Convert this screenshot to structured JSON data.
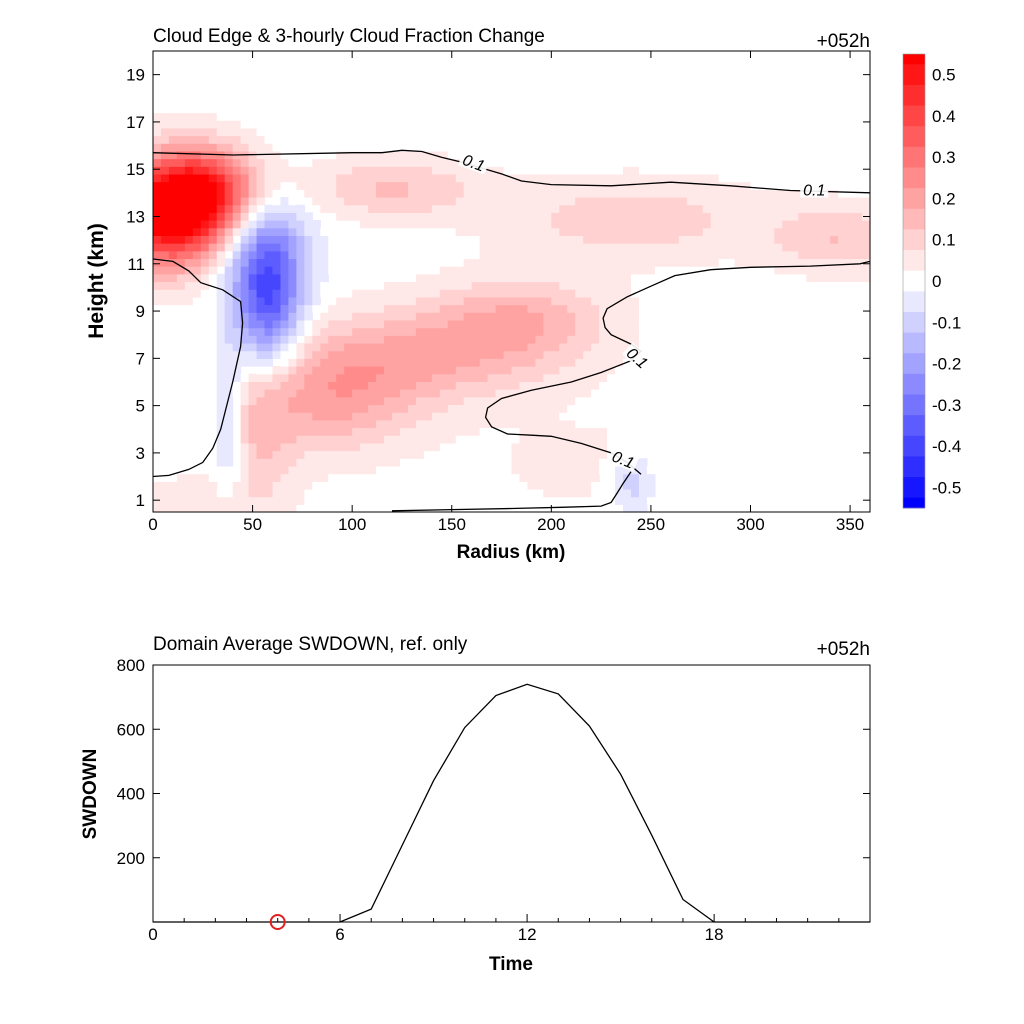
{
  "chart_data": [
    {
      "type": "heatmap",
      "title": "Cloud Edge & 3-hourly Cloud Fraction Change",
      "time_tag": "+052h",
      "xlabel": "Radius (km)",
      "ylabel": "Height (km)",
      "xlim": [
        0,
        360
      ],
      "ylim": [
        0.5,
        20
      ],
      "x_ticks": [
        0,
        50,
        100,
        150,
        200,
        250,
        300,
        350
      ],
      "y_ticks": [
        1,
        3,
        5,
        7,
        9,
        11,
        13,
        15,
        17,
        19
      ],
      "colorbar": {
        "ticks": [
          0.5,
          0.4,
          0.3,
          0.2,
          0.1,
          0,
          -0.1,
          -0.2,
          -0.3,
          -0.4,
          -0.5
        ],
        "tick_labels": [
          "0.5",
          "0.4",
          "0.3",
          "0.2",
          "0.1",
          "0",
          "-0.1",
          "-0.2",
          "-0.3",
          "-0.4",
          "-0.5"
        ],
        "range": [
          -0.55,
          0.55
        ],
        "positive_color": "#ff0000",
        "negative_color": "#0000ff"
      },
      "features": [
        {
          "x": 10,
          "y": 13.2,
          "sx": 22,
          "sy": 1.6,
          "v": 0.62
        },
        {
          "x": 30,
          "y": 14.2,
          "sx": 18,
          "sy": 1.2,
          "v": 0.25
        },
        {
          "x": 58,
          "y": 9.5,
          "sx": 12,
          "sy": 2.2,
          "v": -0.35
        },
        {
          "x": 52,
          "y": 11.8,
          "sx": 18,
          "sy": 1.6,
          "v": -0.15
        },
        {
          "x": 38,
          "y": 4.5,
          "sx": 6,
          "sy": 2.2,
          "v": -0.16
        },
        {
          "x": 90,
          "y": 5.3,
          "sx": 30,
          "sy": 1.6,
          "v": 0.18
        },
        {
          "x": 140,
          "y": 7.2,
          "sx": 45,
          "sy": 1.4,
          "v": 0.17
        },
        {
          "x": 185,
          "y": 8.8,
          "sx": 30,
          "sy": 1.2,
          "v": 0.14
        },
        {
          "x": 52,
          "y": 4.0,
          "sx": 14,
          "sy": 2.2,
          "v": 0.12
        },
        {
          "x": 120,
          "y": 14.2,
          "sx": 30,
          "sy": 0.9,
          "v": 0.13
        },
        {
          "x": 240,
          "y": 12.9,
          "sx": 45,
          "sy": 1.2,
          "v": 0.11
        },
        {
          "x": 345,
          "y": 12.1,
          "sx": 25,
          "sy": 1.0,
          "v": 0.12
        },
        {
          "x": 240,
          "y": 1.8,
          "sx": 8,
          "sy": 0.9,
          "v": -0.12
        },
        {
          "x": 20,
          "y": 1.0,
          "sx": 30,
          "sy": 0.8,
          "v": 0.05
        },
        {
          "x": 220,
          "y": 2.5,
          "sx": 40,
          "sy": 1.5,
          "v": 0.04
        }
      ],
      "contour_level_label": "0.1",
      "contours": [
        {
          "points": [
            [
              0,
              15.7
            ],
            [
              40,
              15.6
            ],
            [
              100,
              15.7
            ],
            [
              115,
              15.7
            ],
            [
              125,
              15.8
            ],
            [
              135,
              15.75
            ],
            [
              145,
              15.5
            ],
            [
              155,
              15.3
            ],
            [
              165,
              15.05
            ],
            [
              175,
              14.8
            ],
            [
              185,
              14.5
            ],
            [
              200,
              14.35
            ],
            [
              230,
              14.3
            ],
            [
              260,
              14.45
            ],
            [
              290,
              14.3
            ],
            [
              320,
              14.1
            ],
            [
              360,
              14.0
            ]
          ]
        },
        {
          "points": [
            [
              0,
              11.2
            ],
            [
              10,
              11.1
            ],
            [
              18,
              10.7
            ],
            [
              24,
              10.2
            ],
            [
              35,
              9.9
            ],
            [
              44,
              9.4
            ],
            [
              45,
              8.5
            ],
            [
              44,
              7.5
            ],
            [
              40,
              6.0
            ],
            [
              37,
              5.0
            ],
            [
              34,
              4.0
            ],
            [
              30,
              3.2
            ],
            [
              25,
              2.6
            ],
            [
              18,
              2.3
            ],
            [
              8,
              2.05
            ],
            [
              0,
              2.0
            ]
          ]
        },
        {
          "points": [
            [
              360,
              11.1
            ],
            [
              355,
              11.0
            ],
            [
              330,
              10.9
            ],
            [
              300,
              10.85
            ],
            [
              280,
              10.75
            ],
            [
              262,
              10.5
            ],
            [
              250,
              10.05
            ],
            [
              238,
              9.6
            ],
            [
              228,
              9.1
            ],
            [
              226,
              8.7
            ],
            [
              227,
              8.3
            ],
            [
              230,
              8.0
            ],
            [
              240,
              7.6
            ],
            [
              245,
              7.3
            ],
            [
              240,
              6.9
            ],
            [
              225,
              6.4
            ],
            [
              210,
              6.0
            ],
            [
              190,
              5.65
            ],
            [
              175,
              5.3
            ],
            [
              168,
              4.9
            ],
            [
              167,
              4.5
            ],
            [
              170,
              4.1
            ],
            [
              178,
              3.8
            ],
            [
              190,
              3.75
            ],
            [
              200,
              3.7
            ],
            [
              215,
              3.4
            ],
            [
              230,
              3.0
            ],
            [
              238,
              2.6
            ],
            [
              245,
              2.1
            ]
          ]
        },
        {
          "points": [
            [
              240,
              2.2
            ],
            [
              236,
              1.7
            ],
            [
              233,
              1.3
            ],
            [
              230,
              0.9
            ],
            [
              225,
              0.75
            ],
            [
              205,
              0.7
            ],
            [
              180,
              0.65
            ],
            [
              150,
              0.6
            ],
            [
              120,
              0.55
            ]
          ]
        }
      ],
      "contour_labels": [
        {
          "text": "0.1",
          "x": 161,
          "y": 15.25,
          "rot": 20
        },
        {
          "text": "0.1",
          "x": 332,
          "y": 14.1,
          "rot": 0
        },
        {
          "text": "0.1",
          "x": 243,
          "y": 7.0,
          "rot": 42
        },
        {
          "text": "0.1",
          "x": 236,
          "y": 2.7,
          "rot": 22
        }
      ]
    },
    {
      "type": "line",
      "title": "Domain Average SWDOWN, ref. only",
      "time_tag": "+052h",
      "xlabel": "Time",
      "ylabel": "SWDOWN",
      "xlim": [
        0,
        23
      ],
      "ylim": [
        0,
        800
      ],
      "x_ticks": [
        0,
        6,
        12,
        18
      ],
      "y_ticks": [
        200,
        400,
        600,
        800
      ],
      "series": [
        {
          "x": [
            0,
            1,
            2,
            3,
            4,
            5,
            6,
            7,
            8,
            9,
            10,
            11,
            12,
            13,
            14,
            15,
            16,
            17,
            18,
            19,
            20,
            21,
            22,
            23
          ],
          "y": [
            0,
            0,
            0,
            0,
            0,
            0,
            0,
            40,
            240,
            440,
            605,
            705,
            740,
            710,
            610,
            460,
            270,
            70,
            0,
            0,
            0,
            0,
            0,
            0
          ]
        }
      ],
      "marker": {
        "x": 4,
        "y": 0,
        "color": "#e02020"
      }
    }
  ]
}
